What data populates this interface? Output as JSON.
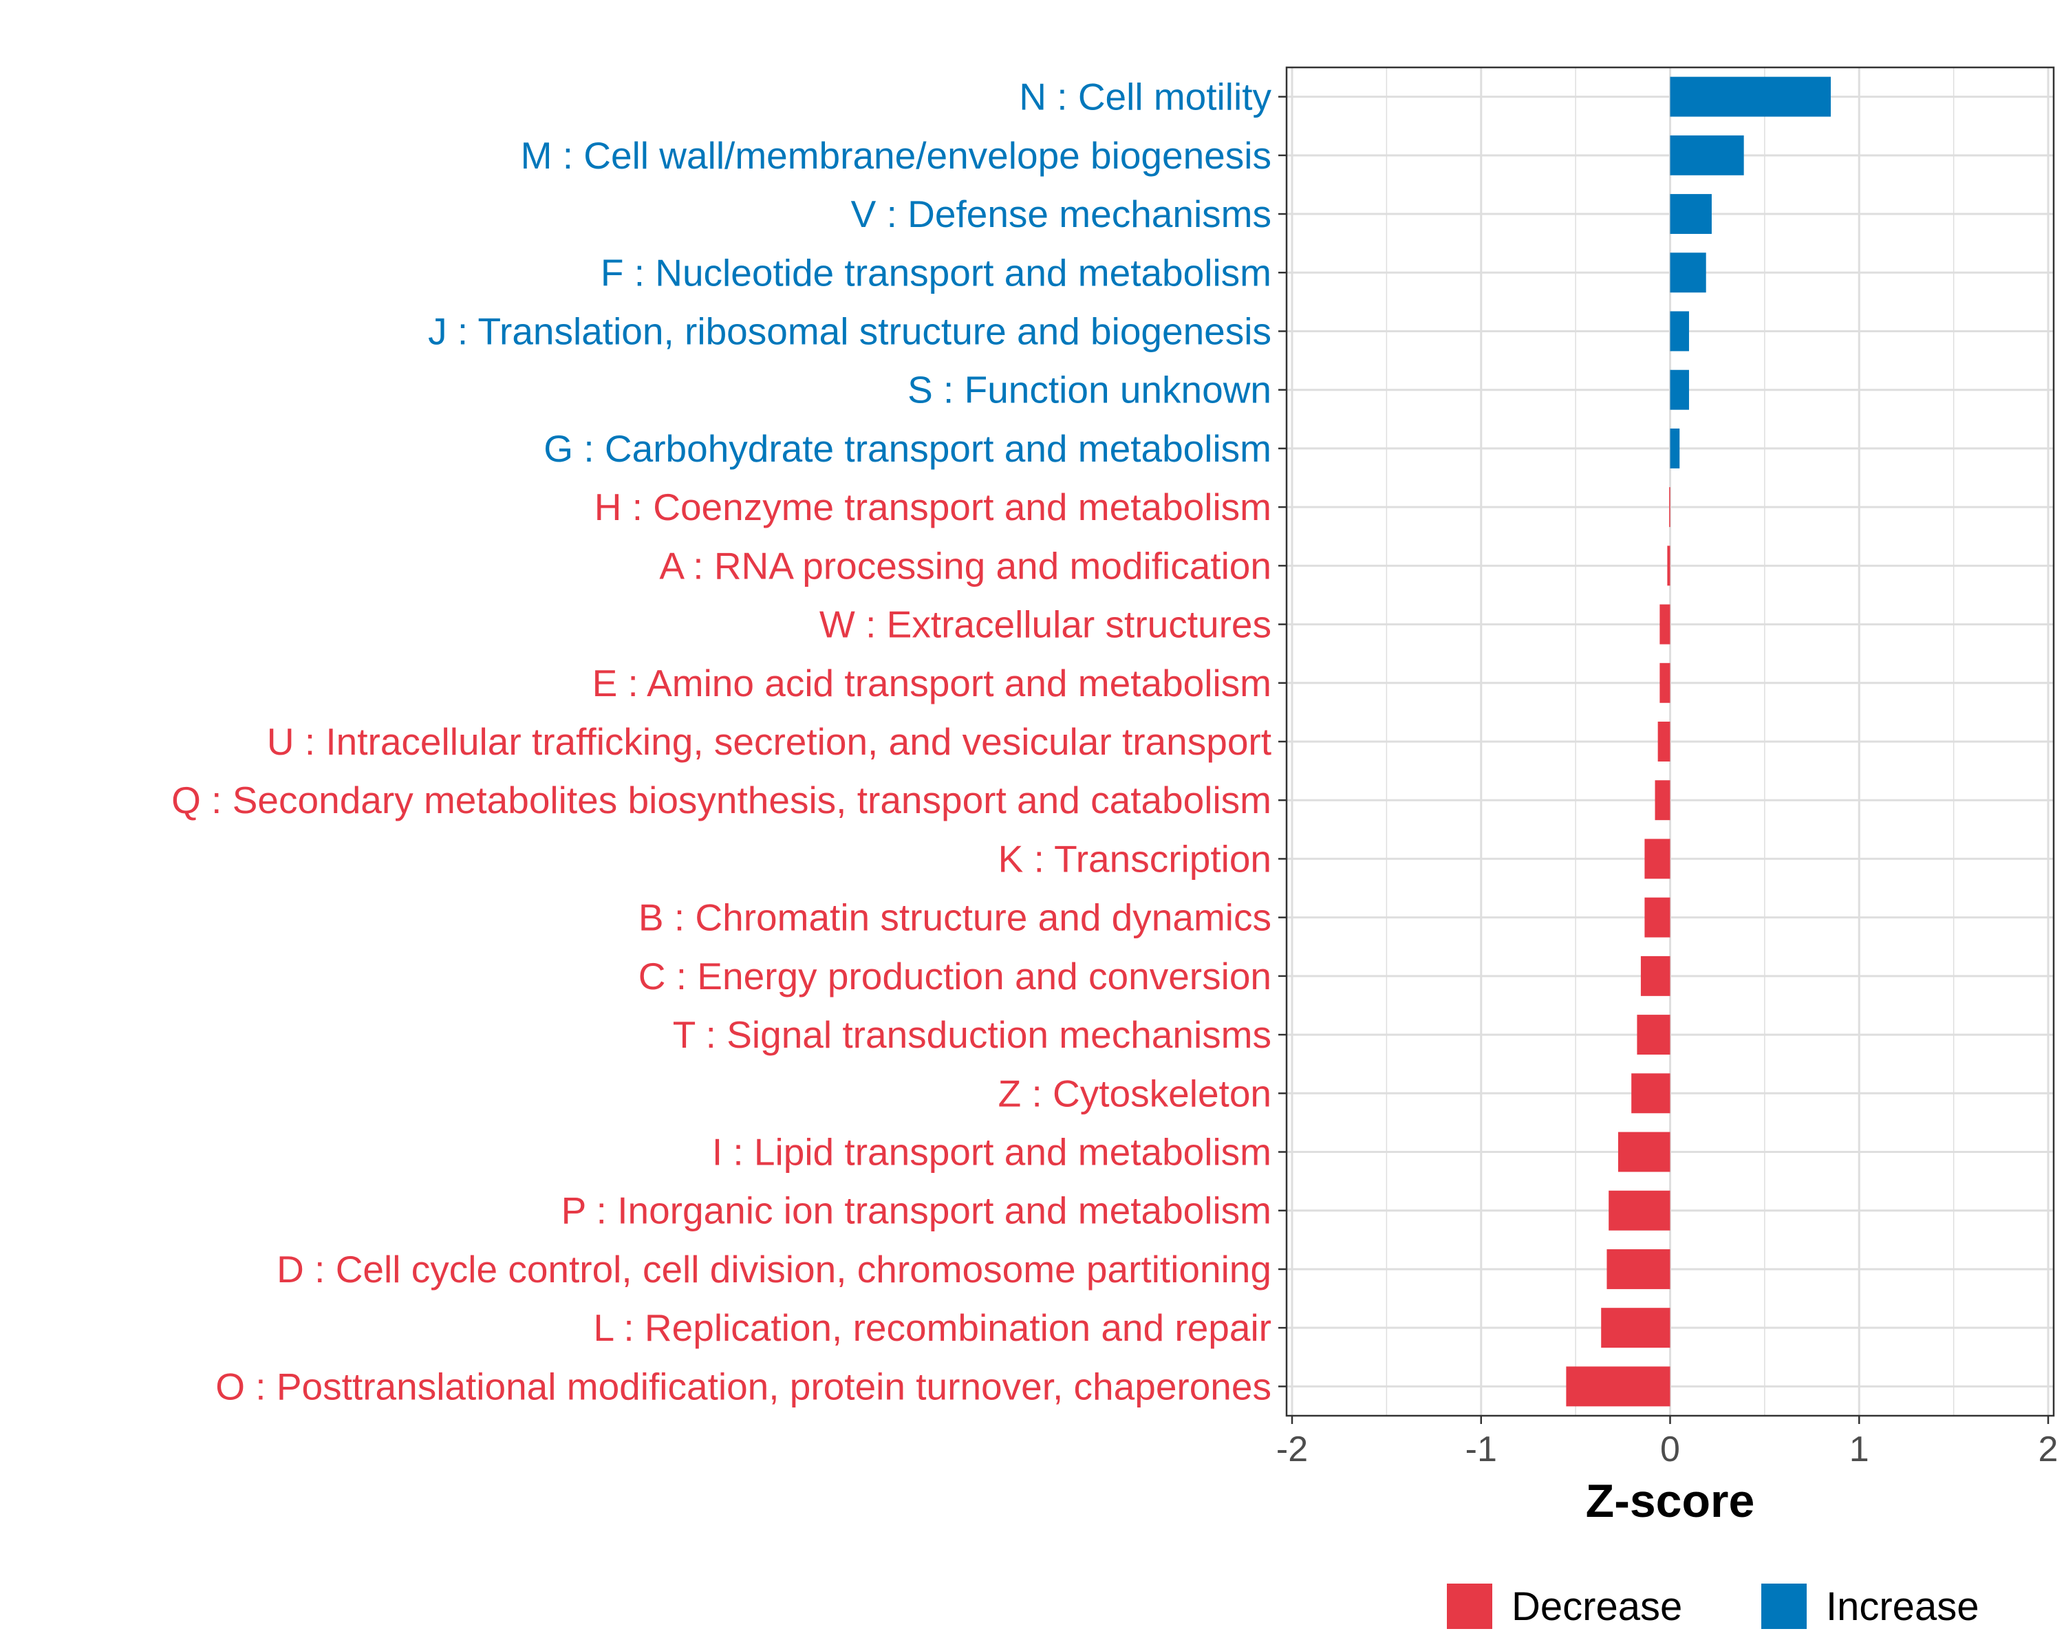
{
  "chart_data": {
    "type": "bar",
    "orientation": "horizontal",
    "title": "",
    "xlabel": "Z-score",
    "ylabel": "",
    "xlim": [
      -2,
      2
    ],
    "xticks": [
      -2,
      -1,
      0,
      1,
      2
    ],
    "xtick_labels": [
      "-2",
      "-1",
      "0",
      "1",
      "2"
    ],
    "grid": true,
    "legend_position": "bottom",
    "colors": {
      "Decrease": "#E63946",
      "Increase": "#0077BB"
    },
    "legend": [
      {
        "label": "Decrease",
        "color_key": "Decrease"
      },
      {
        "label": "Increase",
        "color_key": "Increase"
      }
    ],
    "categories": [
      "N : Cell motility",
      "M : Cell wall/membrane/envelope biogenesis",
      "V : Defense mechanisms",
      "F : Nucleotide transport and metabolism",
      "J : Translation, ribosomal structure and biogenesis",
      "S : Function unknown",
      "G : Carbohydrate transport and metabolism",
      "H : Coenzyme transport and metabolism",
      "A : RNA processing and modification",
      "W : Extracellular structures",
      "E : Amino acid transport and metabolism",
      "U : Intracellular trafficking, secretion, and vesicular transport",
      "Q : Secondary metabolites biosynthesis, transport and catabolism",
      "K : Transcription",
      "B : Chromatin structure and dynamics",
      "C : Energy production and conversion",
      "T : Signal transduction mechanisms",
      "Z : Cytoskeleton",
      "I : Lipid transport and metabolism",
      "P : Inorganic ion transport and metabolism",
      "D : Cell cycle control, cell division, chromosome partitioning",
      "L : Replication, recombination and repair",
      "O : Posttranslational modification, protein turnover, chaperones"
    ],
    "values": [
      0.85,
      0.39,
      0.22,
      0.19,
      0.1,
      0.1,
      0.05,
      -0.005,
      -0.015,
      -0.055,
      -0.055,
      -0.065,
      -0.08,
      -0.135,
      -0.135,
      -0.155,
      -0.175,
      -0.205,
      -0.275,
      -0.325,
      -0.335,
      -0.365,
      -0.55
    ],
    "groups": [
      "Increase",
      "Increase",
      "Increase",
      "Increase",
      "Increase",
      "Increase",
      "Increase",
      "Decrease",
      "Decrease",
      "Decrease",
      "Decrease",
      "Decrease",
      "Decrease",
      "Decrease",
      "Decrease",
      "Decrease",
      "Decrease",
      "Decrease",
      "Decrease",
      "Decrease",
      "Decrease",
      "Decrease",
      "Decrease"
    ]
  }
}
